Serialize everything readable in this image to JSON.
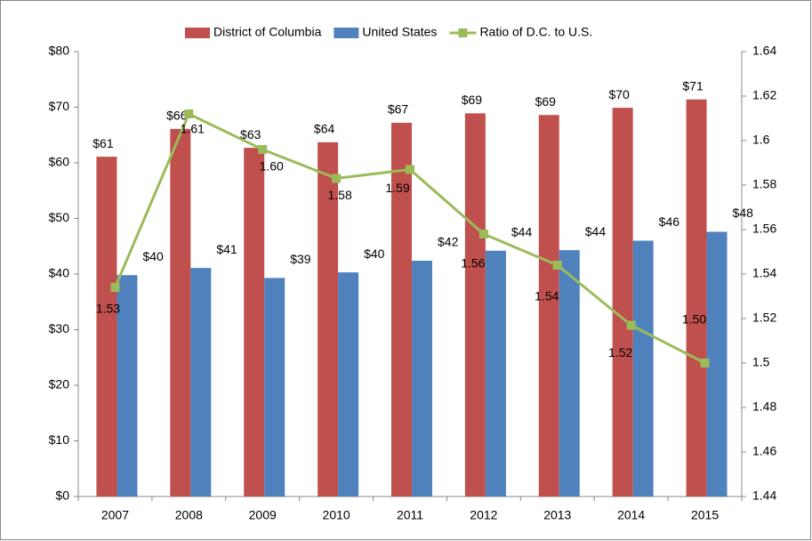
{
  "chart_data": {
    "type": "bar",
    "categories": [
      "2007",
      "2008",
      "2009",
      "2010",
      "2011",
      "2012",
      "2013",
      "2014",
      "2015"
    ],
    "series": [
      {
        "name": "District of Columbia",
        "color": "#c0504d",
        "values": [
          61.1,
          66.1,
          62.7,
          63.7,
          67.2,
          68.9,
          68.6,
          69.9,
          71.4
        ],
        "value_labels": [
          "$61",
          "$66",
          "$63",
          "$64",
          "$67",
          "$69",
          "$69",
          "$70",
          "$71"
        ]
      },
      {
        "name": "United States",
        "color": "#4f81bd",
        "values": [
          39.8,
          41.1,
          39.3,
          40.3,
          42.4,
          44.2,
          44.3,
          46.0,
          47.6
        ],
        "value_labels": [
          "$40",
          "$41",
          "$39",
          "$40",
          "$42",
          "$44",
          "$44",
          "$46",
          "$48"
        ]
      },
      {
        "name": "Ratio of D.C. to U.S.",
        "color": "#9bbb59",
        "type": "line",
        "axis": "y2",
        "values": [
          1.534,
          1.612,
          1.596,
          1.583,
          1.587,
          1.558,
          1.544,
          1.517,
          1.5
        ],
        "value_labels": [
          "1.53",
          "1.61",
          "1.60",
          "1.58",
          "1.59",
          "1.56",
          "1.54",
          "1.52",
          "1.50"
        ]
      }
    ],
    "ylim": [
      0,
      80
    ],
    "yticks": [
      {
        "value": 0,
        "label": "$0"
      },
      {
        "value": 10,
        "label": "$10"
      },
      {
        "value": 20,
        "label": "$20"
      },
      {
        "value": 30,
        "label": "$30"
      },
      {
        "value": 40,
        "label": "$40"
      },
      {
        "value": 50,
        "label": "$50"
      },
      {
        "value": 60,
        "label": "$60"
      },
      {
        "value": 70,
        "label": "$70"
      },
      {
        "value": 80,
        "label": "$80"
      }
    ],
    "y2lim": [
      1.44,
      1.64
    ],
    "y2ticks": [
      1.44,
      1.46,
      1.48,
      1.5,
      1.52,
      1.54,
      1.56,
      1.58,
      1.6,
      1.62,
      1.64
    ],
    "legend": "top",
    "grid": false
  }
}
